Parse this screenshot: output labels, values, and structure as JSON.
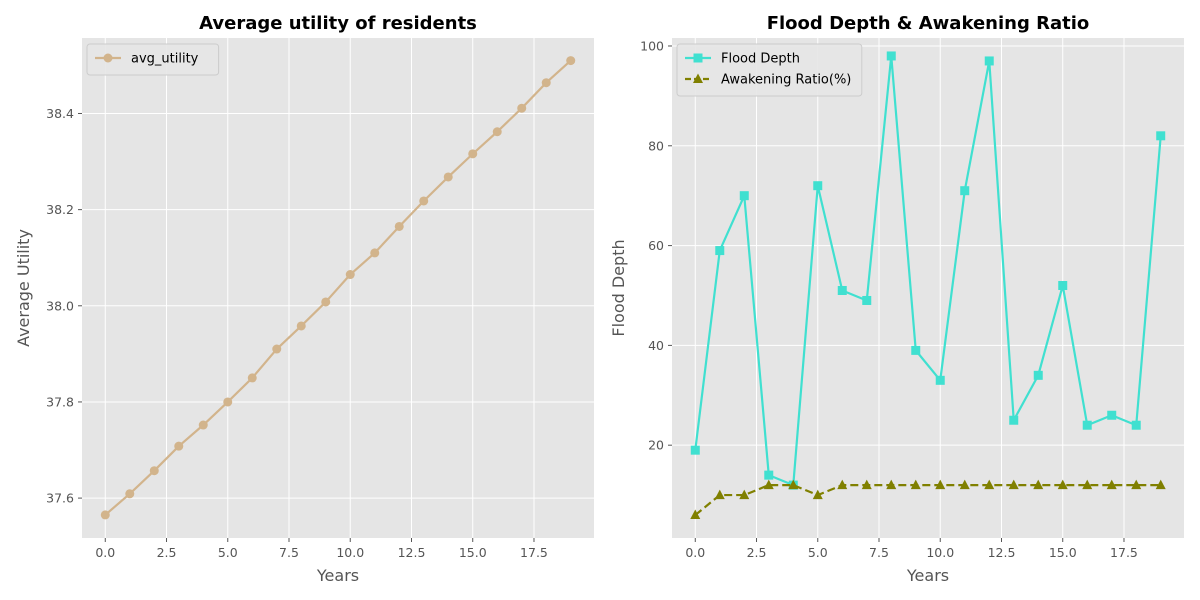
{
  "chart_data": [
    {
      "type": "line",
      "title": "Average utility of residents",
      "xlabel": "Years",
      "ylabel": "Average Utility",
      "xlim": [
        -0.95,
        19.95
      ],
      "ylim": [
        37.517,
        38.557
      ],
      "xticks": [
        0.0,
        2.5,
        5.0,
        7.5,
        10.0,
        12.5,
        15.0,
        17.5
      ],
      "xtick_labels": [
        "0.0",
        "2.5",
        "5.0",
        "7.5",
        "10.0",
        "12.5",
        "15.0",
        "17.5"
      ],
      "yticks": [
        37.6,
        37.8,
        38.0,
        38.2,
        38.4
      ],
      "ytick_labels": [
        "37.6",
        "37.8",
        "38.0",
        "38.2",
        "38.4"
      ],
      "grid": true,
      "legend": "top-left",
      "x": [
        0,
        1,
        2,
        3,
        4,
        5,
        6,
        7,
        8,
        9,
        10,
        11,
        12,
        13,
        14,
        15,
        16,
        17,
        18,
        19
      ],
      "series": [
        {
          "name": "avg_utility",
          "color": "#D2B48C",
          "marker": "circle",
          "dash": "solid",
          "values": [
            37.565,
            37.609,
            37.657,
            37.708,
            37.752,
            37.8,
            37.85,
            37.91,
            37.958,
            38.008,
            38.065,
            38.11,
            38.165,
            38.218,
            38.268,
            38.316,
            38.362,
            38.411,
            38.464,
            38.51
          ]
        }
      ]
    },
    {
      "type": "line",
      "title": "Flood Depth & Awakening Ratio",
      "xlabel": "Years",
      "ylabel": "Flood Depth",
      "xlim": [
        -0.95,
        19.95
      ],
      "ylim": [
        1.4,
        101.6
      ],
      "xticks": [
        0.0,
        2.5,
        5.0,
        7.5,
        10.0,
        12.5,
        15.0,
        17.5
      ],
      "xtick_labels": [
        "0.0",
        "2.5",
        "5.0",
        "7.5",
        "10.0",
        "12.5",
        "15.0",
        "17.5"
      ],
      "yticks": [
        20,
        40,
        60,
        80,
        100
      ],
      "ytick_labels": [
        "20",
        "40",
        "60",
        "80",
        "100"
      ],
      "grid": true,
      "legend": "top-left",
      "x": [
        0,
        1,
        2,
        3,
        4,
        5,
        6,
        7,
        8,
        9,
        10,
        11,
        12,
        13,
        14,
        15,
        16,
        17,
        18,
        19
      ],
      "series": [
        {
          "name": "Flood Depth",
          "color": "#40E0D0",
          "marker": "square",
          "dash": "solid",
          "values": [
            19,
            59,
            70,
            14,
            12,
            72,
            51,
            49,
            98,
            39,
            33,
            71,
            97,
            25,
            34,
            52,
            24,
            26,
            24,
            82
          ]
        },
        {
          "name": "Awakening Ratio(%)",
          "color": "#808000",
          "marker": "triangle",
          "dash": "dashed",
          "values": [
            6,
            10,
            10,
            12,
            12,
            10,
            12,
            12,
            12,
            12,
            12,
            12,
            12,
            12,
            12,
            12,
            12,
            12,
            12,
            12
          ]
        }
      ]
    }
  ]
}
